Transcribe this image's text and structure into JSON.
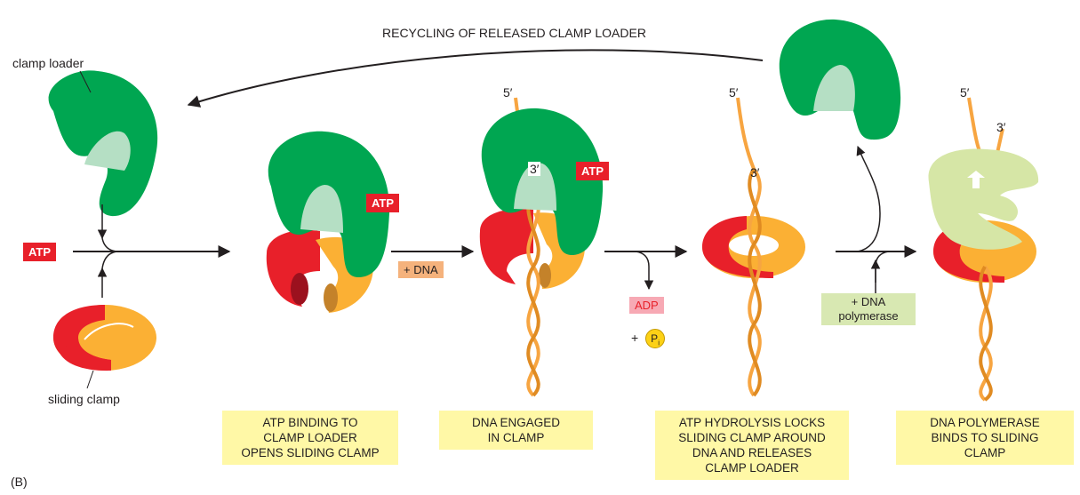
{
  "recycling_label": "RECYCLING OF RELEASED CLAMP LOADER",
  "clamp_loader_label": "clamp loader",
  "sliding_clamp_label": "sliding clamp",
  "atp": "ATP",
  "plus_dna": "+ DNA",
  "adp": "ADP",
  "plus_pi_prefix": "+",
  "pi_symbol": "P",
  "pi_subscript": "i",
  "dna_polymerase": "+ DNA polymerase",
  "dna_polymerase_line1": "+ DNA",
  "dna_polymerase_line2": "polymerase",
  "five_prime": "5′",
  "three_prime": "3′",
  "panel_label": "(B)",
  "steps": [
    "ATP BINDING TO CLAMP LOADER OPENS SLIDING CLAMP",
    "DNA ENGAGED IN CLAMP",
    "ATP HYDROLYSIS LOCKS SLIDING CLAMP AROUND DNA AND RELEASES CLAMP LOADER",
    "DNA POLYMERASE BINDS TO SLIDING CLAMP"
  ],
  "steps_lines": [
    [
      "ATP BINDING TO",
      "CLAMP LOADER",
      "OPENS SLIDING CLAMP"
    ],
    [
      "DNA ENGAGED",
      "IN CLAMP"
    ],
    [
      "ATP HYDROLYSIS LOCKS",
      "SLIDING CLAMP AROUND",
      "DNA AND RELEASES",
      "CLAMP LOADER"
    ],
    [
      "DNA POLYMERASE",
      "BINDS TO SLIDING",
      "CLAMP"
    ]
  ],
  "colors": {
    "clamp_loader": "#00a651",
    "clamp_loader_inner": "#b5dfc4",
    "clamp_red": "#e8202a",
    "clamp_orange": "#fbb034",
    "dna_strand": "#f7a541",
    "polymerase": "#d6e6a6",
    "step_box": "#fff8a6"
  }
}
